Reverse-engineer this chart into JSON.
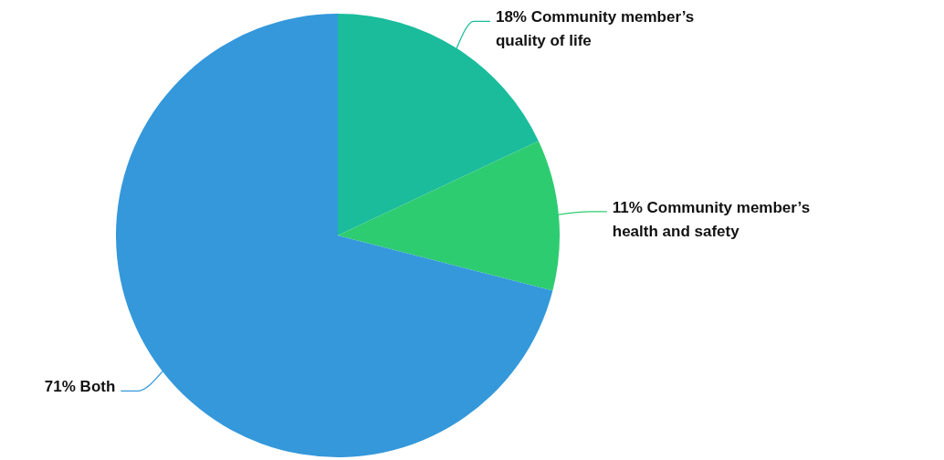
{
  "chart_data": {
    "type": "pie",
    "categories": [
      "Community member’s quality of life",
      "Community member’s health and safety",
      "Both"
    ],
    "values": [
      18,
      11,
      71
    ],
    "colors": [
      "#1abc9c",
      "#2ecc71",
      "#3498db"
    ],
    "value_labels": [
      "18%",
      "11%",
      "71%"
    ]
  }
}
